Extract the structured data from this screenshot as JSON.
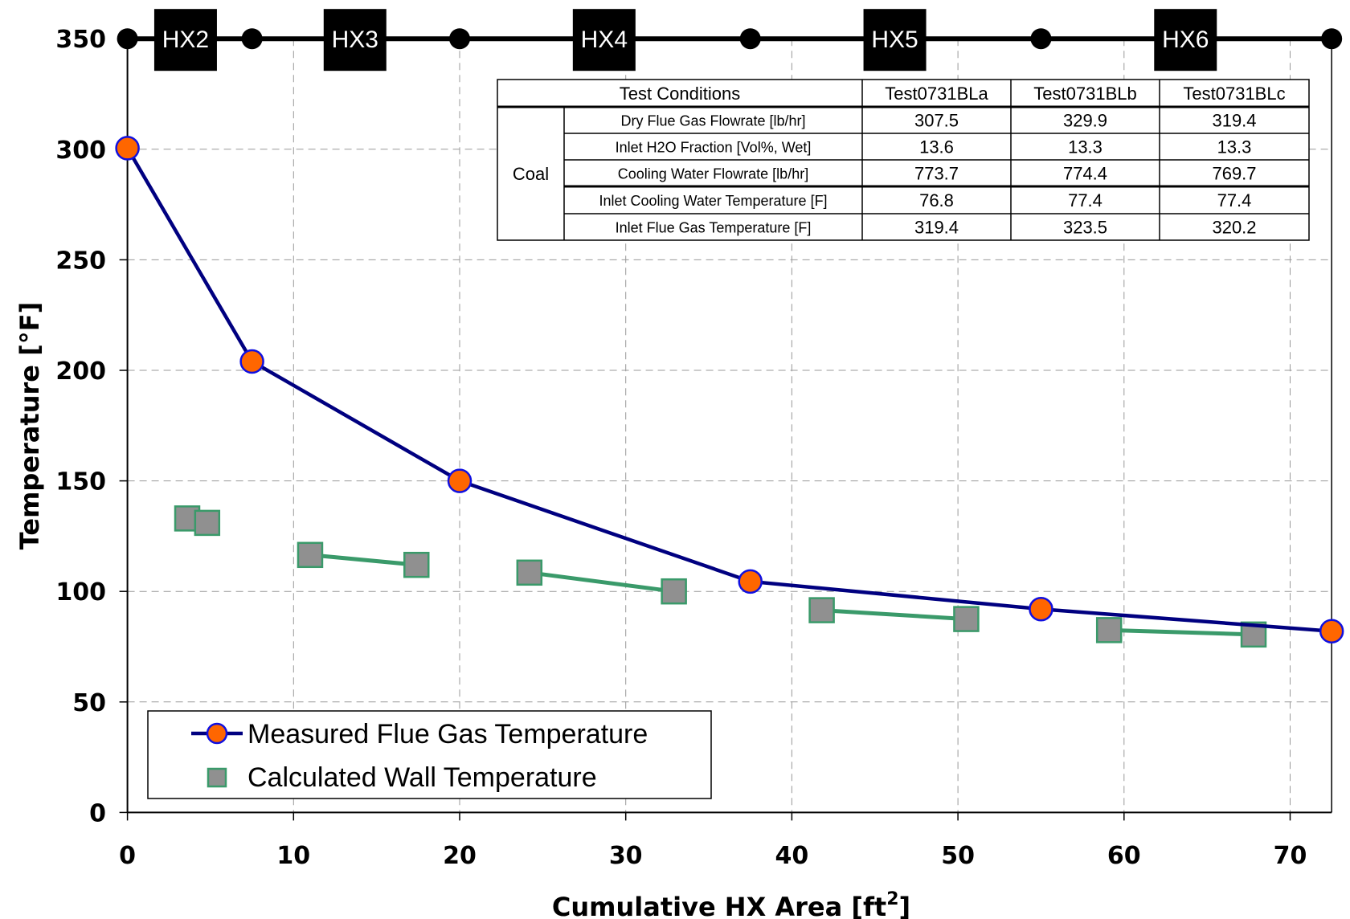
{
  "chart_data": {
    "type": "line",
    "xlabel": "Cumulative HX Area [ft²]",
    "xlabel_base": "Cumulative HX Area [ft",
    "xlabel_sup": "2",
    "xlabel_end": "]",
    "ylabel": "Temperature [°F]",
    "xlim": [
      0,
      72.5
    ],
    "ylim": [
      0,
      350
    ],
    "xticks": [
      0,
      10,
      20,
      30,
      40,
      50,
      60,
      70
    ],
    "yticks": [
      0,
      50,
      100,
      150,
      200,
      250,
      300,
      350
    ],
    "grid": true,
    "legend_position": "bottom-left",
    "series": [
      {
        "name": "Measured Flue Gas Temperature",
        "line_color": "#000080",
        "marker_color": "#FF6600",
        "marker": "circle",
        "x": [
          0,
          7.5,
          20,
          37.5,
          55,
          72.5
        ],
        "y": [
          300.5,
          204,
          150,
          104.5,
          92,
          82
        ]
      },
      {
        "name": "Calculated Wall Temperature",
        "line_color": "#3A9A6A",
        "marker_color": "#909090",
        "marker": "square",
        "x": [
          3.6,
          4.8,
          11,
          17.4,
          24.2,
          32.9,
          41.8,
          50.5,
          59.1,
          67.8
        ],
        "y": [
          133,
          131,
          116.5,
          112,
          108.5,
          100,
          91.5,
          87.5,
          82.5,
          80.5
        ],
        "segments": [
          [
            2,
            3
          ],
          [
            4,
            5
          ],
          [
            6,
            7
          ],
          [
            8,
            9
          ]
        ]
      }
    ],
    "hx_stages": {
      "boundaries": [
        0,
        7.5,
        20,
        37.5,
        55,
        72.5
      ],
      "labels": [
        {
          "text": "HX2",
          "x": 3.5
        },
        {
          "text": "HX3",
          "x": 13.7
        },
        {
          "text": "HX4",
          "x": 28.7
        },
        {
          "text": "HX5",
          "x": 46.2
        },
        {
          "text": "HX6",
          "x": 63.7
        }
      ]
    },
    "table": {
      "header": [
        "Test Conditions",
        "Test0731BLa",
        "Test0731BLb",
        "Test0731BLc"
      ],
      "group": "Coal",
      "rows": [
        {
          "label": "Dry Flue Gas Flowrate [lb/hr]",
          "values": [
            "307.5",
            "329.9",
            "319.4"
          ]
        },
        {
          "label": "Inlet H2O Fraction [Vol%, Wet]",
          "values": [
            "13.6",
            "13.3",
            "13.3"
          ]
        },
        {
          "label": "Cooling Water Flowrate [lb/hr]",
          "values": [
            "773.7",
            "774.4",
            "769.7"
          ]
        },
        {
          "label": "Inlet Cooling Water Temperature [F]",
          "values": [
            "76.8",
            "77.4",
            "77.4"
          ]
        },
        {
          "label": "Inlet Flue Gas Temperature [F]",
          "values": [
            "319.4",
            "323.5",
            "320.2"
          ]
        }
      ]
    }
  }
}
